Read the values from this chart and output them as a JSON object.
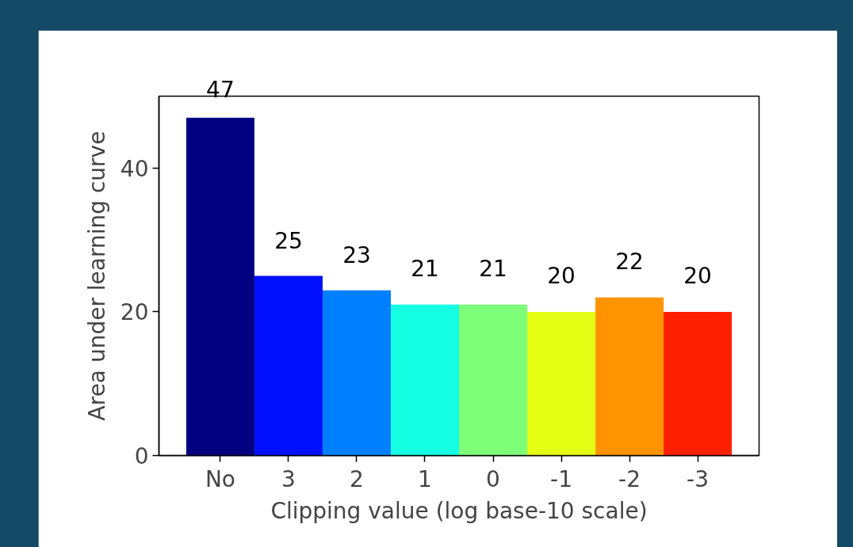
{
  "chart_data": {
    "type": "bar",
    "xlabel": "Clipping value (log base-10 scale)",
    "ylabel": "Area under learning curve",
    "categories": [
      "No",
      "3",
      "2",
      "1",
      "0",
      "-1",
      "-2",
      "-3"
    ],
    "values": [
      47,
      25,
      23,
      21,
      21,
      20,
      22,
      20
    ],
    "colors": [
      "#000080",
      "#0010ff",
      "#0080ff",
      "#15ffe2",
      "#7dff7a",
      "#e4ff13",
      "#ff9400",
      "#ff2000"
    ],
    "ylim": [
      0,
      50
    ],
    "yticks": [
      0,
      20,
      40
    ],
    "data_labels": true,
    "grid": false
  }
}
